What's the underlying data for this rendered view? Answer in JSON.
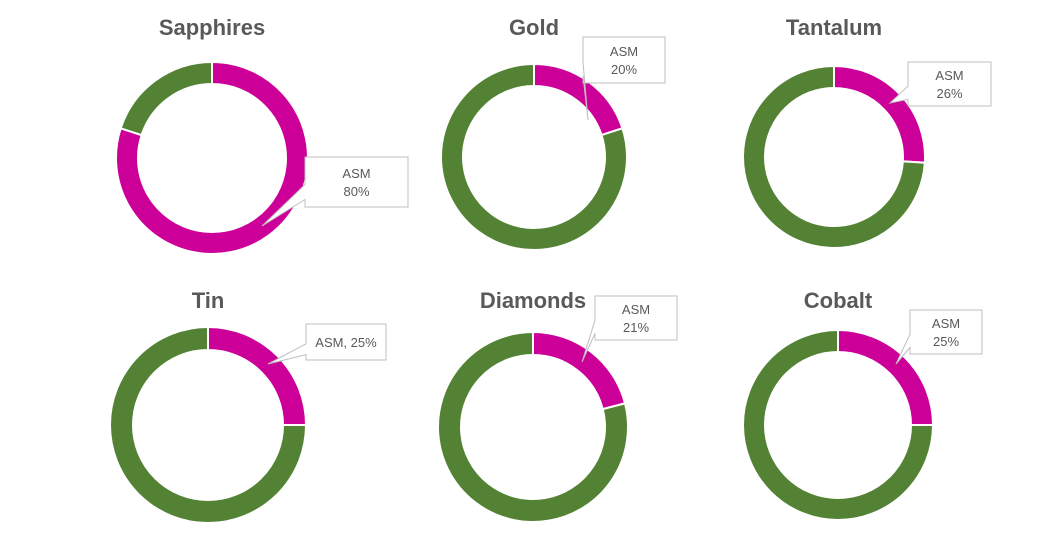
{
  "colors": {
    "asm": "#cc0099",
    "other": "#548235",
    "title": "#595959",
    "callout_border": "#bfbfbf",
    "callout_text": "#595959"
  },
  "chart_data": [
    {
      "type": "pie",
      "title": "Sapphires",
      "series": [
        {
          "label": "ASM",
          "value": 80
        },
        {
          "label": "",
          "value": 20
        }
      ],
      "data_label_lines": [
        "ASM",
        "80%"
      ]
    },
    {
      "type": "pie",
      "title": "Gold",
      "series": [
        {
          "label": "ASM",
          "value": 20
        },
        {
          "label": "",
          "value": 80
        }
      ],
      "data_label_lines": [
        "ASM",
        "20%"
      ]
    },
    {
      "type": "pie",
      "title": "Tantalum",
      "series": [
        {
          "label": "ASM",
          "value": 26
        },
        {
          "label": "",
          "value": 74
        }
      ],
      "data_label_lines": [
        "ASM",
        "26%"
      ]
    },
    {
      "type": "pie",
      "title": "Tin",
      "series": [
        {
          "label": "ASM",
          "value": 25
        },
        {
          "label": "",
          "value": 75
        }
      ],
      "data_label_lines": [
        "ASM, 25%"
      ]
    },
    {
      "type": "pie",
      "title": "Diamonds",
      "series": [
        {
          "label": "ASM",
          "value": 21
        },
        {
          "label": "",
          "value": 79
        }
      ],
      "data_label_lines": [
        "ASM",
        "21%"
      ]
    },
    {
      "type": "pie",
      "title": "Cobalt",
      "series": [
        {
          "label": "ASM",
          "value": 25
        },
        {
          "label": "",
          "value": 75
        }
      ],
      "data_label_lines": [
        "ASM",
        "25%"
      ]
    }
  ]
}
